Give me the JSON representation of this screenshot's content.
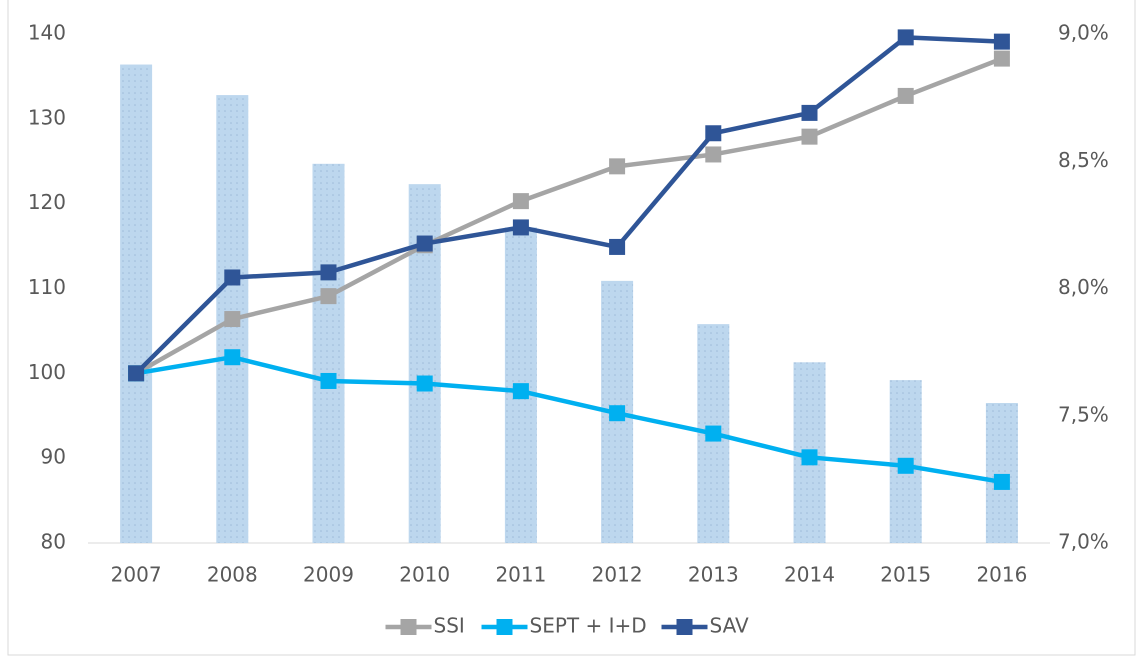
{
  "chart_data": {
    "type": "combo",
    "categories": [
      "2007",
      "2008",
      "2009",
      "2010",
      "2011",
      "2012",
      "2013",
      "2014",
      "2015",
      "2016"
    ],
    "series": [
      {
        "type": "bar",
        "axis": "y2",
        "color": "#bdd7ee",
        "values": [
          8.88,
          8.76,
          8.49,
          8.41,
          8.24,
          8.03,
          7.86,
          7.71,
          7.64,
          7.55
        ]
      },
      {
        "type": "line",
        "name": "SSI",
        "color": "#a5a5a5",
        "values": [
          100,
          106.4,
          109.1,
          115.1,
          120.3,
          124.4,
          125.8,
          127.9,
          132.7,
          137.1
        ]
      },
      {
        "type": "line",
        "name": "SEPT + I+D",
        "color": "#00b0f0",
        "values": [
          100,
          101.9,
          99.1,
          98.8,
          97.9,
          95.3,
          92.9,
          90.1,
          89.1,
          87.2
        ]
      },
      {
        "type": "line",
        "name": "SAV",
        "color": "#2f5597",
        "values": [
          100,
          111.3,
          111.9,
          115.3,
          117.2,
          114.9,
          128.3,
          130.7,
          139.6,
          139.1
        ]
      }
    ],
    "ylim": [
      80,
      140
    ],
    "yticks": [
      80,
      90,
      100,
      110,
      120,
      130,
      140
    ],
    "y2lim": [
      7.0,
      9.0
    ],
    "y2ticks": [
      {
        "value": 7.0,
        "label": "7,0%"
      },
      {
        "value": 7.5,
        "label": "7,5%"
      },
      {
        "value": 8.0,
        "label": "8,0%"
      },
      {
        "value": 8.5,
        "label": "8,5%"
      },
      {
        "value": 9.0,
        "label": "9,0%"
      }
    ],
    "legend": "bottom"
  }
}
